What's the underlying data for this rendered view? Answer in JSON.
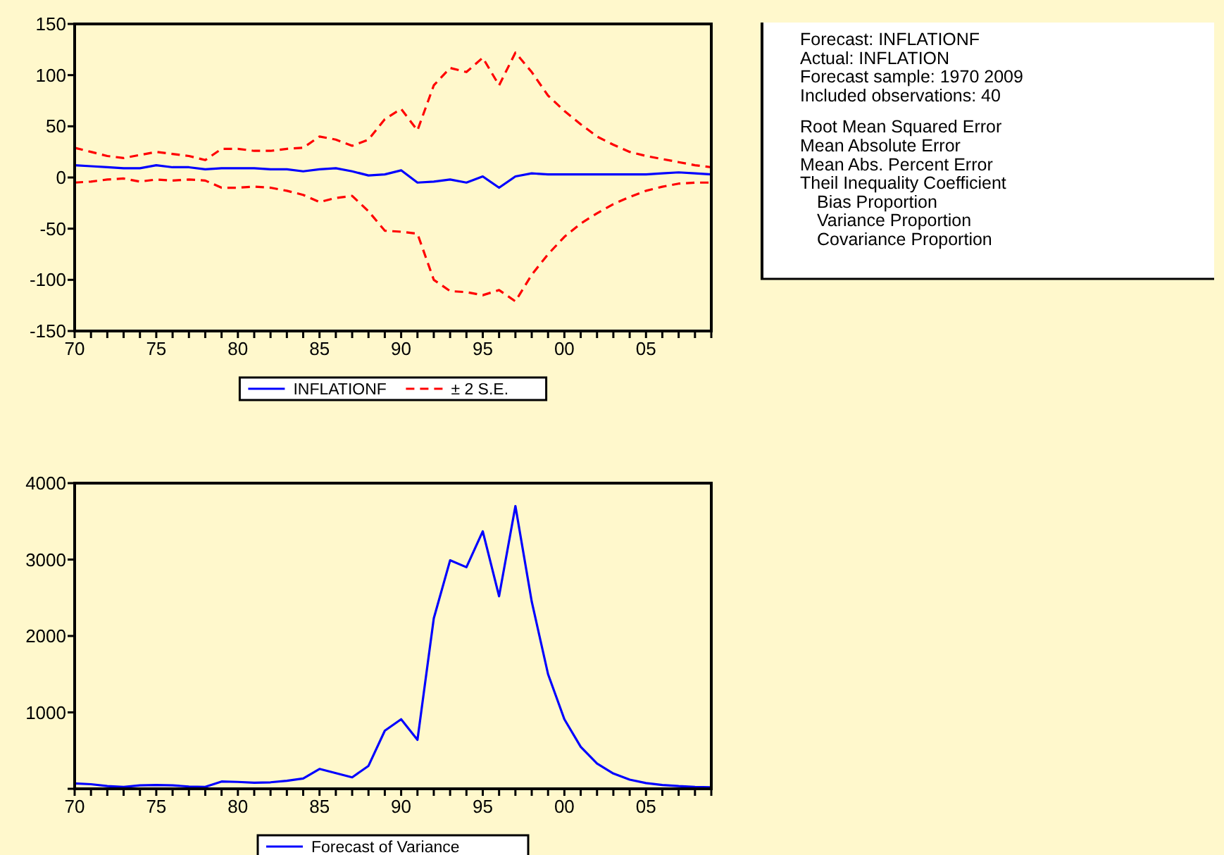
{
  "chart_data": [
    {
      "type": "line",
      "x": [
        1970,
        1971,
        1972,
        1973,
        1974,
        1975,
        1976,
        1977,
        1978,
        1979,
        1980,
        1981,
        1982,
        1983,
        1984,
        1985,
        1986,
        1987,
        1988,
        1989,
        1990,
        1991,
        1992,
        1993,
        1994,
        1995,
        1996,
        1997,
        1998,
        1999,
        2000,
        2001,
        2002,
        2003,
        2004,
        2005,
        2006,
        2007,
        2008,
        2009
      ],
      "series": [
        {
          "name": "INFLATIONF",
          "color": "#0000ff",
          "line_style": "solid",
          "values": [
            12,
            11,
            10,
            9,
            9,
            12,
            10,
            10,
            8,
            9,
            9,
            9,
            8,
            8,
            6,
            8,
            9,
            6,
            2,
            3,
            7,
            -5,
            -4,
            -2,
            -5,
            1,
            -10,
            1,
            4,
            3,
            3,
            3,
            3,
            3,
            3,
            3,
            4,
            5,
            4,
            3
          ]
        },
        {
          "name": "± 2 S.E.",
          "color": "#ff0000",
          "line_style": "dashed",
          "values": [
            29,
            25,
            21,
            19,
            22,
            25,
            23,
            21,
            17,
            28,
            28,
            26,
            26,
            28,
            29,
            40,
            37,
            31,
            37,
            57,
            67,
            46,
            90,
            107,
            103,
            117,
            90,
            122,
            103,
            80,
            65,
            52,
            40,
            32,
            25,
            21,
            18,
            15,
            12,
            10
          ]
        },
        {
          "color": "#ff0000",
          "line_style": "dashed",
          "values": [
            -5,
            -4,
            -2,
            -1,
            -4,
            -2,
            -3,
            -2,
            -3,
            -10,
            -10,
            -9,
            -10,
            -13,
            -17,
            -24,
            -20,
            -18,
            -33,
            -52,
            -53,
            -55,
            -100,
            -111,
            -112,
            -115,
            -110,
            -121,
            -95,
            -75,
            -58,
            -45,
            -35,
            -26,
            -19,
            -13,
            -9,
            -6,
            -5,
            -5
          ]
        }
      ],
      "xlim": [
        1970,
        2009
      ],
      "xticks": [
        {
          "value": 1970,
          "label": "70"
        },
        {
          "value": 1971,
          "label": null
        },
        {
          "value": 1972,
          "label": null
        },
        {
          "value": 1973,
          "label": null
        },
        {
          "value": 1974,
          "label": null
        },
        {
          "value": 1975,
          "label": "75"
        },
        {
          "value": 1976,
          "label": null
        },
        {
          "value": 1977,
          "label": null
        },
        {
          "value": 1978,
          "label": null
        },
        {
          "value": 1979,
          "label": null
        },
        {
          "value": 1980,
          "label": "80"
        },
        {
          "value": 1981,
          "label": null
        },
        {
          "value": 1982,
          "label": null
        },
        {
          "value": 1983,
          "label": null
        },
        {
          "value": 1984,
          "label": null
        },
        {
          "value": 1985,
          "label": "85"
        },
        {
          "value": 1986,
          "label": null
        },
        {
          "value": 1987,
          "label": null
        },
        {
          "value": 1988,
          "label": null
        },
        {
          "value": 1989,
          "label": null
        },
        {
          "value": 1990,
          "label": "90"
        },
        {
          "value": 1991,
          "label": null
        },
        {
          "value": 1992,
          "label": null
        },
        {
          "value": 1993,
          "label": null
        },
        {
          "value": 1994,
          "label": null
        },
        {
          "value": 1995,
          "label": "95"
        },
        {
          "value": 1996,
          "label": null
        },
        {
          "value": 1997,
          "label": null
        },
        {
          "value": 1998,
          "label": null
        },
        {
          "value": 1999,
          "label": null
        },
        {
          "value": 2000,
          "label": "00"
        },
        {
          "value": 2001,
          "label": null
        },
        {
          "value": 2002,
          "label": null
        },
        {
          "value": 2003,
          "label": null
        },
        {
          "value": 2004,
          "label": null
        },
        {
          "value": 2005,
          "label": "05"
        },
        {
          "value": 2006,
          "label": null
        },
        {
          "value": 2007,
          "label": null
        },
        {
          "value": 2008,
          "label": null
        },
        {
          "value": 2009,
          "label": null
        }
      ],
      "ylim": [
        -150,
        150
      ],
      "yticks": [
        -150,
        -100,
        -50,
        0,
        50,
        100,
        150
      ],
      "legend": "bottom",
      "grid": false,
      "marker": "none"
    },
    {
      "type": "other",
      "annotations": [
        "Forecast: INFLATIONF",
        "Actual: INFLATION",
        "Forecast sample: 1970 2009",
        "Included observations: 40",
        "Root Mean Squared Error",
        "Mean Absolute Error",
        "Mean Abs. Percent Error",
        "Theil Inequality Coefficient",
        "Bias Proportion",
        "Variance Proportion",
        "Covariance Proportion"
      ]
    },
    {
      "type": "line",
      "x": [
        1970,
        1971,
        1972,
        1973,
        1974,
        1975,
        1976,
        1977,
        1978,
        1979,
        1980,
        1981,
        1982,
        1983,
        1984,
        1985,
        1986,
        1987,
        1988,
        1989,
        1990,
        1991,
        1992,
        1993,
        1994,
        1995,
        1996,
        1997,
        1998,
        1999,
        2000,
        2001,
        2002,
        2003,
        2004,
        2005,
        2006,
        2007,
        2008,
        2009
      ],
      "series": [
        {
          "name": "Forecast of Variance",
          "color": "#0000ff",
          "values": [
            70,
            60,
            35,
            25,
            45,
            50,
            45,
            30,
            25,
            95,
            90,
            80,
            85,
            105,
            135,
            260,
            205,
            150,
            300,
            760,
            910,
            640,
            2230,
            2990,
            2900,
            3370,
            2520,
            3700,
            2450,
            1500,
            910,
            550,
            330,
            200,
            120,
            75,
            50,
            35,
            25,
            20
          ]
        }
      ],
      "xlim": [
        1970,
        2009
      ],
      "xticks": [
        {
          "value": 1970,
          "label": "70"
        },
        {
          "value": 1971,
          "label": null
        },
        {
          "value": 1972,
          "label": null
        },
        {
          "value": 1973,
          "label": null
        },
        {
          "value": 1974,
          "label": null
        },
        {
          "value": 1975,
          "label": "75"
        },
        {
          "value": 1976,
          "label": null
        },
        {
          "value": 1977,
          "label": null
        },
        {
          "value": 1978,
          "label": null
        },
        {
          "value": 1979,
          "label": null
        },
        {
          "value": 1980,
          "label": "80"
        },
        {
          "value": 1981,
          "label": null
        },
        {
          "value": 1982,
          "label": null
        },
        {
          "value": 1983,
          "label": null
        },
        {
          "value": 1984,
          "label": null
        },
        {
          "value": 1985,
          "label": "85"
        },
        {
          "value": 1986,
          "label": null
        },
        {
          "value": 1987,
          "label": null
        },
        {
          "value": 1988,
          "label": null
        },
        {
          "value": 1989,
          "label": null
        },
        {
          "value": 1990,
          "label": "90"
        },
        {
          "value": 1991,
          "label": null
        },
        {
          "value": 1992,
          "label": null
        },
        {
          "value": 1993,
          "label": null
        },
        {
          "value": 1994,
          "label": null
        },
        {
          "value": 1995,
          "label": "95"
        },
        {
          "value": 1996,
          "label": null
        },
        {
          "value": 1997,
          "label": null
        },
        {
          "value": 1998,
          "label": null
        },
        {
          "value": 1999,
          "label": null
        },
        {
          "value": 2000,
          "label": "00"
        },
        {
          "value": 2001,
          "label": null
        },
        {
          "value": 2002,
          "label": null
        },
        {
          "value": 2003,
          "label": null
        },
        {
          "value": 2004,
          "label": null
        },
        {
          "value": 2005,
          "label": "05"
        },
        {
          "value": 2006,
          "label": null
        },
        {
          "value": 2007,
          "label": null
        },
        {
          "value": 2008,
          "label": null
        },
        {
          "value": 2009,
          "label": null
        }
      ],
      "ylim": [
        0,
        4000
      ],
      "yticks": [
        {
          "value": 0,
          "label": null
        },
        1000,
        2000,
        3000,
        4000
      ],
      "legend": "bottom",
      "grid": false,
      "marker": "none"
    }
  ]
}
